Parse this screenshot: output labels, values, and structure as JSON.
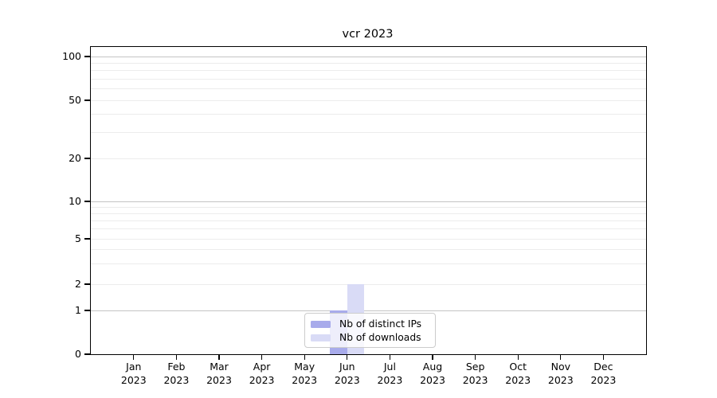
{
  "figure": {
    "background": "#ffffff"
  },
  "chart_data": {
    "type": "bar",
    "title": "vcr 2023",
    "categories": [
      "Jan 2023",
      "Feb 2023",
      "Mar 2023",
      "Apr 2023",
      "May 2023",
      "Jun 2023",
      "Jul 2023",
      "Aug 2023",
      "Sep 2023",
      "Oct 2023",
      "Nov 2023",
      "Dec 2023"
    ],
    "series": [
      {
        "name": "Nb of distinct IPs",
        "color": "#a8abeb",
        "values": [
          0,
          0,
          0,
          0,
          0,
          1,
          0,
          0,
          0,
          0,
          0,
          0
        ]
      },
      {
        "name": "Nb of downloads",
        "color": "#d9dbf6",
        "values": [
          0,
          0,
          0,
          0,
          0,
          2,
          0,
          0,
          0,
          0,
          0,
          0
        ]
      }
    ],
    "xlabel": "",
    "ylabel": "",
    "y_scale": "symlog",
    "y_ticks": [
      0,
      1,
      2,
      5,
      10,
      20,
      50,
      100
    ],
    "y_minor_ticks": [
      3,
      4,
      6,
      7,
      8,
      9,
      30,
      40,
      60,
      70,
      80,
      90
    ],
    "ylim": [
      0,
      110
    ],
    "grid": "horizontal",
    "legend": {
      "position": "lower center",
      "entries": [
        "Nb of distinct IPs",
        "Nb of downloads"
      ]
    },
    "colors": {
      "spine": "#000000",
      "grid_major": "#c4c4c4",
      "grid_minor": "#ececec",
      "text": "#000000",
      "legend_border": "#cccccc",
      "legend_background": "rgba(255,255,255,0.8)"
    }
  }
}
